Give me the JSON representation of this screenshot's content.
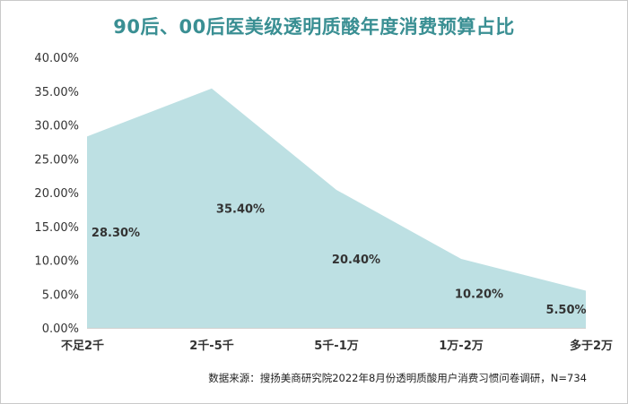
{
  "chart_data": {
    "type": "area",
    "title": "90后、00后医美级透明质酸年度消费预算占比",
    "categories": [
      "不足2千",
      "2千-5千",
      "5千-1万",
      "1万-2万",
      "多于2万"
    ],
    "values": [
      28.3,
      35.4,
      20.4,
      10.2,
      5.5
    ],
    "data_labels": [
      "28.30%",
      "35.40%",
      "20.40%",
      "10.20%",
      "5.50%"
    ],
    "y_ticks": [
      "0.00%",
      "5.00%",
      "10.00%",
      "15.00%",
      "20.00%",
      "25.00%",
      "30.00%",
      "35.00%",
      "40.00%"
    ],
    "ylim": [
      0,
      40
    ],
    "xlabel": "",
    "ylabel": "",
    "grid": false,
    "legend": "none",
    "area_color": "#bde0e3",
    "title_color": "#3a8f93"
  },
  "source": "数据来源：搜扬美商研究院2022年8月份透明质酸用户消费习惯问卷调研，N=734"
}
